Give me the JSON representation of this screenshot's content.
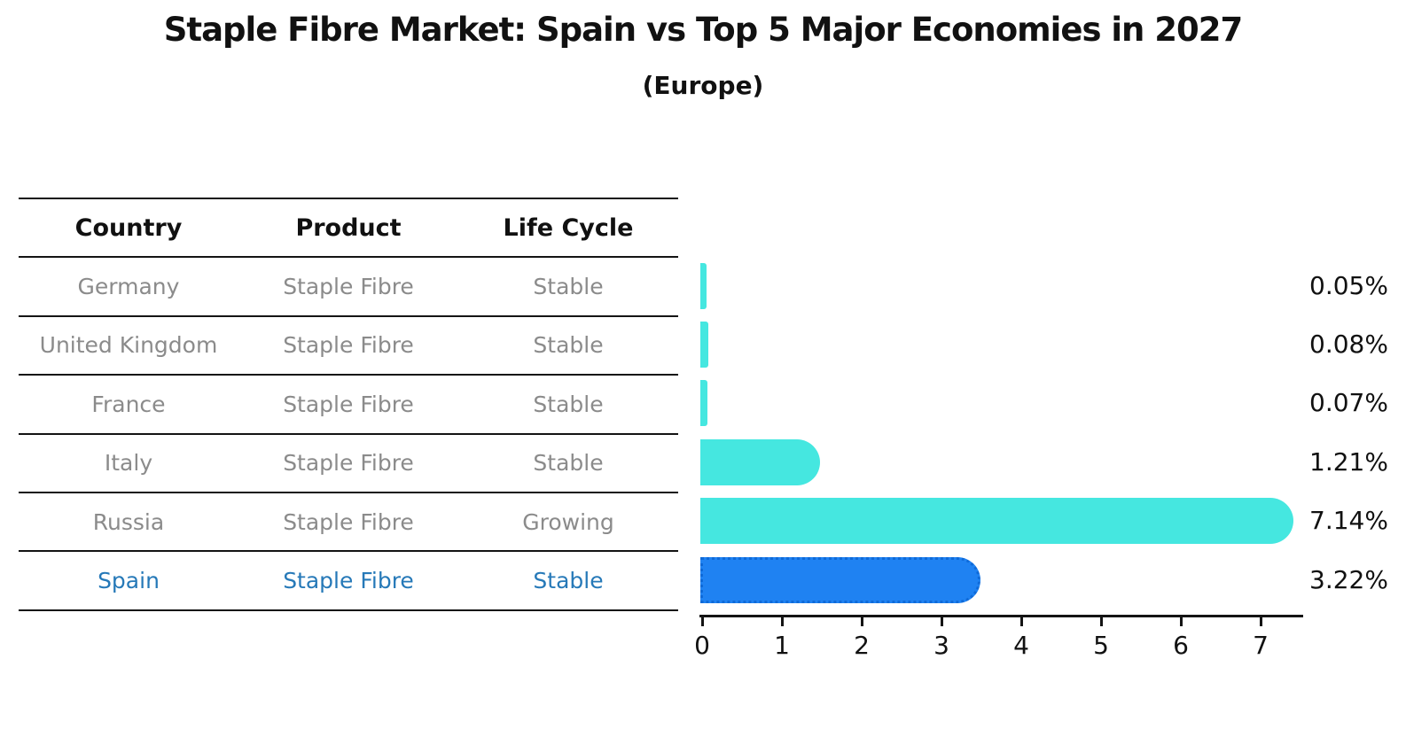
{
  "title": "Staple Fibre Market: Spain vs Top 5 Major Economies in 2027",
  "subtitle": "(Europe)",
  "table": {
    "headers": [
      "Country",
      "Product",
      "Life Cycle"
    ],
    "rows": [
      {
        "country": "Germany",
        "product": "Staple Fibre",
        "life_cycle": "Stable",
        "highlight": false
      },
      {
        "country": "United Kingdom",
        "product": "Staple Fibre",
        "life_cycle": "Stable",
        "highlight": false
      },
      {
        "country": "France",
        "product": "Staple Fibre",
        "life_cycle": "Stable",
        "highlight": false
      },
      {
        "country": "Italy",
        "product": "Staple Fibre",
        "life_cycle": "Stable",
        "highlight": false
      },
      {
        "country": "Russia",
        "product": "Staple Fibre",
        "life_cycle": "Growing",
        "highlight": false
      },
      {
        "country": "Spain",
        "product": "Staple Fibre",
        "life_cycle": "Stable",
        "highlight": true
      }
    ]
  },
  "chart_data": {
    "type": "bar",
    "orientation": "horizontal",
    "title": "Staple Fibre Market: Spain vs Top 5 Major Economies in 2027",
    "subtitle": "(Europe)",
    "categories": [
      "Germany",
      "United Kingdom",
      "France",
      "Italy",
      "Russia",
      "Spain"
    ],
    "values": [
      0.05,
      0.08,
      0.07,
      1.21,
      7.14,
      3.22
    ],
    "value_labels": [
      "0.05%",
      "0.08%",
      "0.07%",
      "1.21%",
      "7.14%",
      "3.22%"
    ],
    "xlim": [
      0,
      7.5
    ],
    "x_ticks": [
      "0",
      "1",
      "2",
      "3",
      "4",
      "5",
      "6",
      "7"
    ],
    "grid": false,
    "legend": "none",
    "bar_color": "#45e7e0",
    "highlight_bar_color": "#1f82f2",
    "highlight_border_color": "#0f6ad8",
    "highlight_index": 5,
    "highlight_text_color": "#2679b8",
    "table_text_color": "#8b8b8b"
  }
}
